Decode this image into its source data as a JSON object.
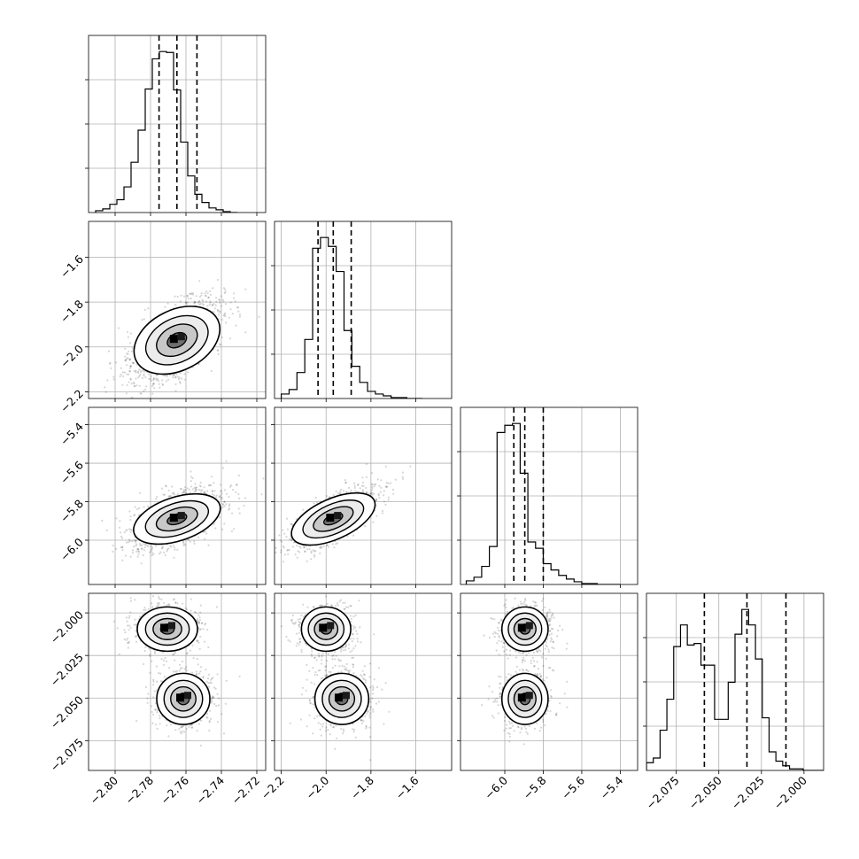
{
  "chart_data": {
    "type": "corner",
    "grid": true,
    "parameters": [
      {
        "range": [
          -2.815,
          -2.715
        ],
        "ticks": [
          -2.8,
          -2.78,
          -2.76,
          -2.74,
          -2.72
        ],
        "tick_labels": [
          "−2.80",
          "−2.78",
          "−2.76",
          "−2.74",
          "−2.72"
        ],
        "quantiles": [
          -2.7752,
          -2.7651,
          -2.7538
        ],
        "hist": {
          "edges_start": -2.811,
          "bin_width": 0.004,
          "counts": [
            2,
            4,
            9,
            14,
            28,
            55,
            90,
            135,
            168,
            176,
            175,
            134,
            77,
            40,
            20,
            11,
            5,
            3,
            1,
            0
          ]
        }
      },
      {
        "range": [
          -2.23,
          -1.44
        ],
        "ticks": [
          -2.2,
          -2.0,
          -1.8,
          -1.6
        ],
        "tick_labels": [
          "−2.2",
          "−2.0",
          "−1.8",
          "−1.6"
        ],
        "quantiles": [
          -2.036,
          -1.968,
          -1.888
        ],
        "hist": {
          "edges_start": -2.2,
          "bin_width": 0.035,
          "counts": [
            5,
            10,
            29,
            66,
            168,
            180,
            170,
            142,
            76,
            36,
            18,
            8,
            5,
            3,
            1,
            1,
            0,
            0
          ]
        }
      },
      {
        "range": [
          -6.23,
          -5.31
        ],
        "ticks": [
          -6.0,
          -5.8,
          -5.6,
          -5.4
        ],
        "tick_labels": [
          "−6.0",
          "−5.8",
          "−5.6",
          "−5.4"
        ],
        "quantiles": [
          -5.953,
          -5.896,
          -5.8
        ],
        "hist": {
          "edges_start": -6.2,
          "bin_width": 0.04,
          "counts": [
            4,
            8,
            20,
            42,
            168,
            176,
            178,
            123,
            47,
            40,
            23,
            16,
            10,
            6,
            3,
            1,
            1,
            0,
            0,
            0
          ]
        }
      },
      {
        "range": [
          -2.0925,
          -1.9885
        ],
        "ticks": [
          -2.075,
          -2.05,
          -2.025,
          -2.0
        ],
        "tick_labels": [
          "−2.075",
          "−2.050",
          "−2.025",
          "−2.000"
        ],
        "quantiles": [
          -2.0585,
          -2.0335,
          -2.0106
        ],
        "hist": {
          "edges_start": -2.0925,
          "bin_width": 0.004,
          "counts": [
            5,
            8,
            26,
            46,
            80,
            94,
            81,
            82,
            68,
            68,
            33,
            33,
            57,
            88,
            104,
            94,
            72,
            34,
            12,
            6,
            3,
            1,
            1,
            0,
            0,
            0
          ]
        }
      }
    ],
    "pairs": [
      {
        "x": 0,
        "y": 1,
        "y_tick_labels": [
          "−1.6",
          "−1.8",
          "−2.0",
          "−2.2"
        ],
        "components": [
          {
            "mean": [
              -2.7651,
              -1.97
            ],
            "sd": [
              0.0112,
              0.085
            ],
            "rho": 0.6,
            "weight": 1.0
          }
        ]
      },
      {
        "x": 0,
        "y": 2,
        "y_tick_labels": [
          "−5.4",
          "−5.6",
          "−5.8",
          "−6.0"
        ],
        "components": [
          {
            "mean": [
              -2.7651,
              -5.89
            ],
            "sd": [
              0.0112,
              0.07
            ],
            "rho": 0.55,
            "weight": 1.0
          }
        ]
      },
      {
        "x": 1,
        "y": 2,
        "components": [
          {
            "mean": [
              -1.968,
              -5.89
            ],
            "sd": [
              0.085,
              0.07
            ],
            "rho": 0.72,
            "weight": 1.0
          }
        ]
      },
      {
        "x": 0,
        "y": 3,
        "y_tick_labels": [
          "−2.000",
          "−2.025",
          "−2.050",
          "−2.075"
        ],
        "components": [
          {
            "mean": [
              -2.7705,
              -2.0095
            ],
            "sd": [
              0.0085,
              0.0065
            ],
            "rho": 0.0,
            "weight": 0.5
          },
          {
            "mean": [
              -2.7615,
              -2.0505
            ],
            "sd": [
              0.0075,
              0.0075
            ],
            "rho": 0.0,
            "weight": 0.5
          }
        ]
      },
      {
        "x": 1,
        "y": 3,
        "components": [
          {
            "mean": [
              -2.0,
              -2.0095
            ],
            "sd": [
              0.055,
              0.0065
            ],
            "rho": 0.0,
            "weight": 0.5
          },
          {
            "mean": [
              -1.93,
              -2.0505
            ],
            "sd": [
              0.06,
              0.0075
            ],
            "rho": 0.0,
            "weight": 0.5
          }
        ]
      },
      {
        "x": 2,
        "y": 3,
        "components": [
          {
            "mean": [
              -5.895,
              -2.0095
            ],
            "sd": [
              0.06,
              0.0065
            ],
            "rho": 0.0,
            "weight": 0.5
          },
          {
            "mean": [
              -5.895,
              -2.0505
            ],
            "sd": [
              0.06,
              0.0075
            ],
            "rho": 0.0,
            "weight": 0.5
          }
        ]
      }
    ]
  }
}
